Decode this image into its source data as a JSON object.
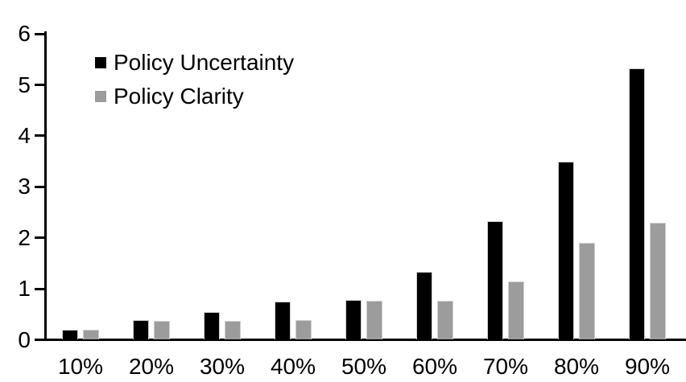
{
  "chart_data": {
    "type": "bar",
    "title": "",
    "xlabel": "",
    "ylabel": "",
    "categories": [
      "10%",
      "20%",
      "30%",
      "40%",
      "50%",
      "60%",
      "70%",
      "80%",
      "90%"
    ],
    "series": [
      {
        "name": "Policy Uncertainty",
        "color": "#000000",
        "values": [
          0.2,
          0.38,
          0.55,
          0.75,
          0.78,
          1.33,
          2.32,
          3.5,
          5.33
        ]
      },
      {
        "name": "Policy Clarity",
        "color": "#9c9c9c",
        "values": [
          0.2,
          0.37,
          0.37,
          0.38,
          0.77,
          0.77,
          1.15,
          1.9,
          2.3
        ]
      }
    ],
    "ylim": [
      0,
      6
    ],
    "yticks": [
      "0",
      "1",
      "2",
      "3",
      "4",
      "5",
      "6"
    ],
    "grid": false,
    "legend_position": "top-left",
    "axis_color": "#000000",
    "background_color": "#ffffff"
  }
}
